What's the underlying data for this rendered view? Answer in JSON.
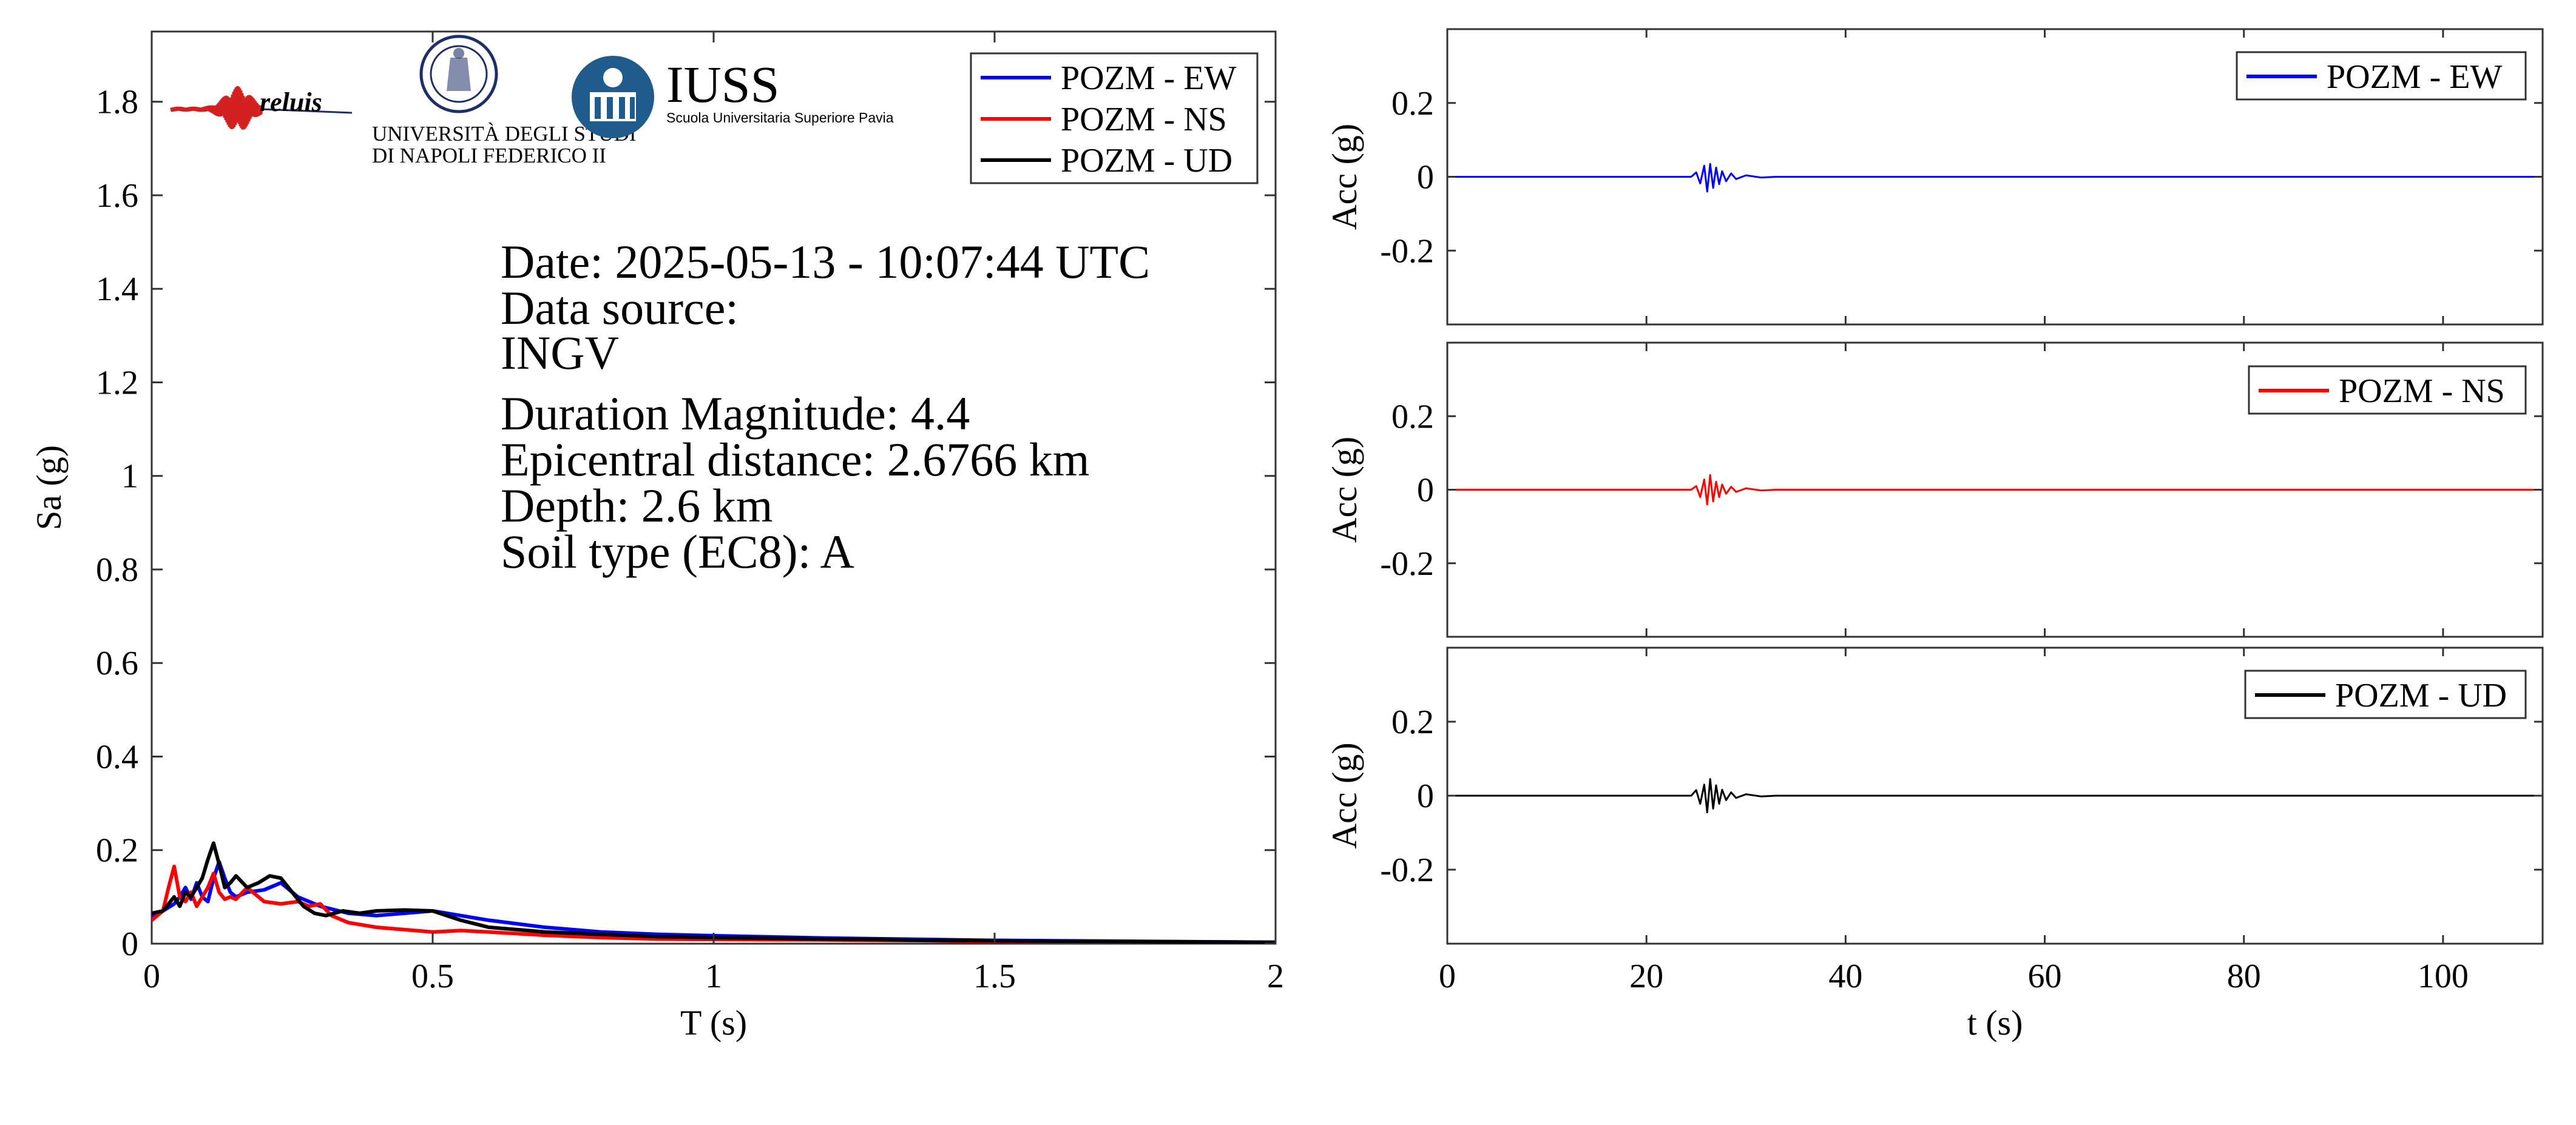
{
  "colors": {
    "ew": "#0000ff",
    "ns": "#ff0000",
    "ud": "#000000",
    "axis": "#333333",
    "iuss": "#1f5b8c"
  },
  "logos": {
    "reluis": "reluis",
    "unina_line1": "UNIVERSITÀ DEGLI STUDI",
    "unina_line2": "DI NAPOLI FEDERICO II",
    "iuss_title": "IUSS",
    "iuss_subtitle": "Scuola Universitaria Superiore Pavia"
  },
  "info": {
    "date": "Date: 2025-05-13 - 10:07:44 UTC",
    "source_label": "Data source:",
    "source": "INGV",
    "magnitude": "Duration Magnitude: 4.4",
    "distance": "Epicentral distance: 2.6766 km",
    "depth": "Depth: 2.6 km",
    "soil": "Soil type (EC8): A"
  },
  "chart_data": [
    {
      "type": "line",
      "xlabel": "T (s)",
      "ylabel": "Sa (g)",
      "xlim": [
        0,
        2
      ],
      "ylim": [
        0,
        1.95
      ],
      "xticks": [
        0,
        0.5,
        1,
        1.5,
        2
      ],
      "xtick_labels": [
        "0",
        "0.5",
        "1",
        "1.5",
        "2"
      ],
      "yticks": [
        0,
        0.2,
        0.4,
        0.6,
        0.8,
        1,
        1.2,
        1.4,
        1.6,
        1.8
      ],
      "ytick_labels": [
        "0",
        "0.2",
        "0.4",
        "0.6",
        "0.8",
        "1",
        "1.2",
        "1.4",
        "1.6",
        "1.8"
      ],
      "legend_position": "top-right",
      "series": [
        {
          "name": "POZM - EW",
          "color": "#0000ff",
          "x": [
            0,
            0.02,
            0.04,
            0.05,
            0.06,
            0.07,
            0.08,
            0.09,
            0.1,
            0.11,
            0.12,
            0.13,
            0.14,
            0.15,
            0.17,
            0.2,
            0.23,
            0.26,
            0.3,
            0.35,
            0.4,
            0.45,
            0.5,
            0.55,
            0.6,
            0.7,
            0.8,
            0.9,
            1.0,
            1.2,
            1.5,
            2.0
          ],
          "y": [
            0.06,
            0.07,
            0.085,
            0.1,
            0.12,
            0.095,
            0.13,
            0.1,
            0.09,
            0.14,
            0.175,
            0.14,
            0.11,
            0.1,
            0.11,
            0.115,
            0.13,
            0.1,
            0.08,
            0.065,
            0.06,
            0.065,
            0.07,
            0.06,
            0.05,
            0.035,
            0.025,
            0.02,
            0.017,
            0.012,
            0.007,
            0.003
          ]
        },
        {
          "name": "POZM - NS",
          "color": "#ff0000",
          "x": [
            0,
            0.02,
            0.03,
            0.04,
            0.05,
            0.06,
            0.07,
            0.08,
            0.09,
            0.1,
            0.11,
            0.12,
            0.13,
            0.14,
            0.15,
            0.17,
            0.2,
            0.23,
            0.26,
            0.28,
            0.3,
            0.32,
            0.35,
            0.4,
            0.45,
            0.5,
            0.55,
            0.6,
            0.7,
            0.8,
            0.9,
            1.0,
            1.2,
            1.5,
            2.0
          ],
          "y": [
            0.05,
            0.07,
            0.12,
            0.165,
            0.1,
            0.09,
            0.11,
            0.08,
            0.1,
            0.12,
            0.15,
            0.11,
            0.095,
            0.1,
            0.095,
            0.12,
            0.09,
            0.085,
            0.09,
            0.08,
            0.085,
            0.06,
            0.045,
            0.035,
            0.03,
            0.025,
            0.028,
            0.025,
            0.018,
            0.013,
            0.01,
            0.009,
            0.008,
            0.005,
            0.002
          ]
        },
        {
          "name": "POZM - UD",
          "color": "#000000",
          "x": [
            0,
            0.02,
            0.04,
            0.05,
            0.06,
            0.07,
            0.08,
            0.09,
            0.1,
            0.11,
            0.12,
            0.13,
            0.14,
            0.15,
            0.17,
            0.19,
            0.21,
            0.23,
            0.25,
            0.27,
            0.29,
            0.31,
            0.34,
            0.37,
            0.4,
            0.45,
            0.5,
            0.55,
            0.6,
            0.7,
            0.8,
            0.9,
            1.0,
            1.2,
            1.5,
            2.0
          ],
          "y": [
            0.065,
            0.07,
            0.1,
            0.08,
            0.11,
            0.1,
            0.12,
            0.14,
            0.18,
            0.215,
            0.17,
            0.12,
            0.13,
            0.145,
            0.12,
            0.13,
            0.145,
            0.14,
            0.11,
            0.08,
            0.065,
            0.06,
            0.07,
            0.065,
            0.07,
            0.072,
            0.07,
            0.05,
            0.035,
            0.025,
            0.02,
            0.015,
            0.013,
            0.01,
            0.006,
            0.003
          ]
        }
      ]
    },
    {
      "type": "line",
      "xlabel": "",
      "ylabel": "Acc (g)",
      "xlim": [
        0,
        110
      ],
      "ylim": [
        -0.4,
        0.4
      ],
      "xticks": [
        0,
        20,
        40,
        60,
        80,
        100
      ],
      "xtick_labels": [],
      "yticks": [
        -0.2,
        0,
        0.2
      ],
      "ytick_labels": [
        "-0.2",
        "0",
        "0.2"
      ],
      "legend_position": "top-right",
      "series": [
        {
          "name": "POZM - EW",
          "color": "#0000ff",
          "x": [
            0,
            24.5,
            25.0,
            25.4,
            25.8,
            26.1,
            26.4,
            26.7,
            27.0,
            27.3,
            27.6,
            28.0,
            28.5,
            29.0,
            30.0,
            31.5,
            33.0,
            110
          ],
          "y": [
            0,
            0,
            0.012,
            -0.018,
            0.03,
            -0.04,
            0.035,
            -0.03,
            0.025,
            -0.02,
            0.015,
            -0.012,
            0.009,
            -0.006,
            0.004,
            -0.002,
            0,
            0
          ]
        }
      ]
    },
    {
      "type": "line",
      "xlabel": "",
      "ylabel": "Acc (g)",
      "xlim": [
        0,
        110
      ],
      "ylim": [
        -0.4,
        0.4
      ],
      "xticks": [
        0,
        20,
        40,
        60,
        80,
        100
      ],
      "xtick_labels": [],
      "yticks": [
        -0.2,
        0,
        0.2
      ],
      "ytick_labels": [
        "-0.2",
        "0",
        "0.2"
      ],
      "legend_position": "top-right",
      "series": [
        {
          "name": "POZM - NS",
          "color": "#ff0000",
          "x": [
            0,
            24.5,
            25.0,
            25.4,
            25.8,
            26.1,
            26.4,
            26.7,
            27.0,
            27.3,
            27.6,
            28.0,
            28.5,
            29.0,
            30.0,
            31.5,
            33.0,
            110
          ],
          "y": [
            0,
            0,
            0.01,
            -0.02,
            0.028,
            -0.04,
            0.04,
            -0.032,
            0.022,
            -0.02,
            0.014,
            -0.011,
            0.008,
            -0.006,
            0.004,
            -0.002,
            0,
            0
          ]
        }
      ]
    },
    {
      "type": "line",
      "xlabel": "t (s)",
      "ylabel": "Acc (g)",
      "xlim": [
        0,
        110
      ],
      "ylim": [
        -0.4,
        0.4
      ],
      "xticks": [
        0,
        20,
        40,
        60,
        80,
        100
      ],
      "xtick_labels": [
        "0",
        "20",
        "40",
        "60",
        "80",
        "100"
      ],
      "yticks": [
        -0.2,
        0,
        0.2
      ],
      "ytick_labels": [
        "-0.2",
        "0",
        "0.2"
      ],
      "legend_position": "top-right",
      "series": [
        {
          "name": "POZM - UD",
          "color": "#000000",
          "x": [
            0,
            24.5,
            25.0,
            25.4,
            25.8,
            26.1,
            26.4,
            26.7,
            27.0,
            27.3,
            27.6,
            28.0,
            28.5,
            29.0,
            30.0,
            31.5,
            33.0,
            110
          ],
          "y": [
            0,
            0,
            0.015,
            -0.022,
            0.03,
            -0.045,
            0.045,
            -0.035,
            0.028,
            -0.022,
            0.016,
            -0.012,
            0.009,
            -0.006,
            0.004,
            -0.002,
            0,
            0
          ]
        }
      ]
    }
  ]
}
